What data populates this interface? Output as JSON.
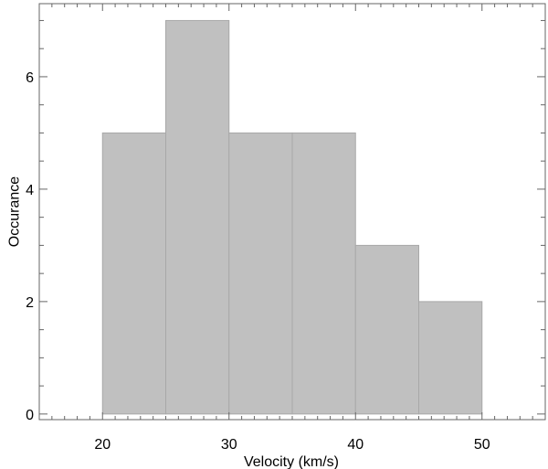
{
  "chart_data": {
    "type": "bar",
    "bins": [
      {
        "x0": 20,
        "x1": 25,
        "value": 5
      },
      {
        "x0": 25,
        "x1": 30,
        "value": 7
      },
      {
        "x0": 30,
        "x1": 35,
        "value": 5
      },
      {
        "x0": 35,
        "x1": 40,
        "value": 5
      },
      {
        "x0": 40,
        "x1": 45,
        "value": 3
      },
      {
        "x0": 45,
        "x1": 50,
        "value": 2
      }
    ],
    "title": "",
    "xlabel": "Velocity (km/s)",
    "ylabel": "Occurance",
    "xlim": [
      15,
      55
    ],
    "ylim": [
      -0.1,
      7.3
    ],
    "xticks_major": [
      20,
      30,
      40,
      50
    ],
    "xtick_minor_step": 1,
    "yticks_major": [
      0,
      2,
      4,
      6
    ],
    "ytick_minor_step": 0.5,
    "grid": false,
    "legend": "none",
    "colors": {
      "bar_fill": "#c0c0c0",
      "bar_edge": "#a8a8a8",
      "axis": "#666666"
    }
  }
}
